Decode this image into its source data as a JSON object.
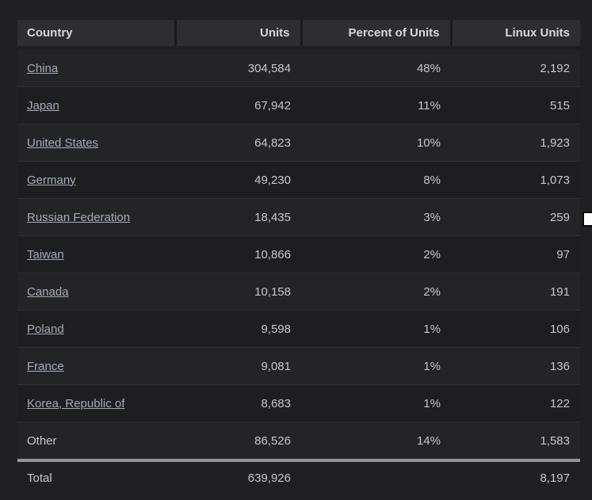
{
  "page": {
    "background_color": "#202023"
  },
  "colors": {
    "header_bg": "#2e2e31",
    "header_text": "#d8d8d8",
    "row_light_bg": "#242427",
    "row_dark_bg": "#1e1e21",
    "link_color": "#a2acb8",
    "number_text": "#c7c7c9",
    "total_separator": "#959598",
    "cursor_artifact": "#ffffff"
  },
  "table": {
    "columns": [
      "Country",
      "Units",
      "Percent of Units",
      "Linux Units"
    ],
    "rows": [
      {
        "country": "China",
        "units": "304,584",
        "percent": "48%",
        "linux_units": "2,192",
        "is_link": true
      },
      {
        "country": "Japan",
        "units": "67,942",
        "percent": "11%",
        "linux_units": "515",
        "is_link": true
      },
      {
        "country": "United States",
        "units": "64,823",
        "percent": "10%",
        "linux_units": "1,923",
        "is_link": true
      },
      {
        "country": "Germany",
        "units": "49,230",
        "percent": "8%",
        "linux_units": "1,073",
        "is_link": true
      },
      {
        "country": "Russian Federation",
        "units": "18,435",
        "percent": "3%",
        "linux_units": "259",
        "is_link": true
      },
      {
        "country": "Taiwan",
        "units": "10,866",
        "percent": "2%",
        "linux_units": "97",
        "is_link": true
      },
      {
        "country": "Canada",
        "units": "10,158",
        "percent": "2%",
        "linux_units": "191",
        "is_link": true
      },
      {
        "country": "Poland",
        "units": "9,598",
        "percent": "1%",
        "linux_units": "106",
        "is_link": true
      },
      {
        "country": "France",
        "units": "9,081",
        "percent": "1%",
        "linux_units": "136",
        "is_link": true
      },
      {
        "country": "Korea, Republic of",
        "units": "8,683",
        "percent": "1%",
        "linux_units": "122",
        "is_link": true
      },
      {
        "country": "Other",
        "units": "86,526",
        "percent": "14%",
        "linux_units": "1,583",
        "is_link": false
      }
    ],
    "total": {
      "label": "Total",
      "units": "639,926",
      "percent": "",
      "linux_units": "8,197"
    }
  }
}
